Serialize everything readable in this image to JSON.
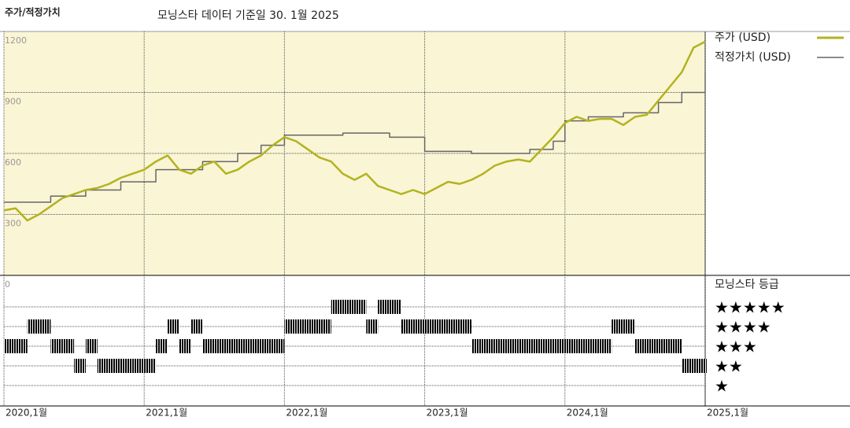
{
  "chart_data": {
    "type": "line",
    "corner_title": "주가/적정가치",
    "title": "모닝스타 데이터 기준일 30. 1월 2025",
    "x": [
      "2020-01",
      "2020-02",
      "2020-03",
      "2020-04",
      "2020-05",
      "2020-06",
      "2020-07",
      "2020-08",
      "2020-09",
      "2020-10",
      "2020-11",
      "2020-12",
      "2021-01",
      "2021-02",
      "2021-03",
      "2021-04",
      "2021-05",
      "2021-06",
      "2021-07",
      "2021-08",
      "2021-09",
      "2021-10",
      "2021-11",
      "2021-12",
      "2022-01",
      "2022-02",
      "2022-03",
      "2022-04",
      "2022-05",
      "2022-06",
      "2022-07",
      "2022-08",
      "2022-09",
      "2022-10",
      "2022-11",
      "2022-12",
      "2023-01",
      "2023-02",
      "2023-03",
      "2023-04",
      "2023-05",
      "2023-06",
      "2023-07",
      "2023-08",
      "2023-09",
      "2023-10",
      "2023-11",
      "2023-12",
      "2024-01",
      "2024-02",
      "2024-03",
      "2024-04",
      "2024-05",
      "2024-06",
      "2024-07",
      "2024-08",
      "2024-09",
      "2024-10",
      "2024-11",
      "2024-12",
      "2025-01"
    ],
    "series": [
      {
        "name": "주가 (USD)",
        "color": "#b3b320",
        "values": [
          320,
          330,
          270,
          300,
          340,
          380,
          400,
          420,
          430,
          450,
          480,
          500,
          520,
          560,
          590,
          520,
          500,
          540,
          560,
          500,
          520,
          560,
          590,
          640,
          680,
          660,
          620,
          580,
          560,
          500,
          470,
          500,
          440,
          420,
          400,
          420,
          400,
          430,
          460,
          450,
          470,
          500,
          540,
          560,
          570,
          560,
          620,
          680,
          750,
          780,
          760,
          770,
          770,
          740,
          780,
          790,
          860,
          930,
          1000,
          1120,
          1150
        ]
      },
      {
        "name": "적정가치 (USD)",
        "color": "#666666",
        "step": true,
        "values": [
          360,
          360,
          360,
          360,
          390,
          390,
          390,
          420,
          420,
          420,
          460,
          460,
          460,
          520,
          520,
          520,
          520,
          560,
          560,
          560,
          600,
          600,
          640,
          640,
          690,
          690,
          690,
          690,
          690,
          700,
          700,
          700,
          700,
          680,
          680,
          680,
          610,
          610,
          610,
          610,
          600,
          600,
          600,
          600,
          600,
          620,
          620,
          660,
          760,
          760,
          780,
          780,
          780,
          800,
          800,
          800,
          850,
          850,
          900,
          900,
          1000
        ]
      }
    ],
    "ratings": {
      "name": "모닝스타 등급",
      "color": "#111111",
      "top_color": "#3d8a6c",
      "labels": [
        "★★★★★",
        "★★★★",
        "★★★",
        "★★",
        "★"
      ],
      "values": [
        3,
        3,
        4,
        4,
        3,
        3,
        2,
        3,
        2,
        2,
        2,
        2,
        2,
        3,
        4,
        3,
        4,
        3,
        3,
        3,
        3,
        3,
        3,
        3,
        4,
        4,
        4,
        4,
        5,
        5,
        5,
        4,
        5,
        5,
        4,
        4,
        4,
        4,
        4,
        4,
        3,
        3,
        3,
        3,
        3,
        3,
        3,
        3,
        3,
        3,
        3,
        3,
        4,
        4,
        3,
        3,
        3,
        3,
        2,
        2,
        2
      ]
    },
    "xlim": [
      "2020-01",
      "2025-01"
    ],
    "xticks": [
      {
        "value": "2020-01",
        "label": "2020,1월"
      },
      {
        "value": "2021-01",
        "label": "2021,1월"
      },
      {
        "value": "2022-01",
        "label": "2022,1월"
      },
      {
        "value": "2023-01",
        "label": "2023,1월"
      },
      {
        "value": "2024-01",
        "label": "2024,1월"
      },
      {
        "value": "2025-01",
        "label": "2025,1월"
      }
    ],
    "ylim": [
      0,
      1200
    ],
    "yticks": [
      0,
      300,
      600,
      900,
      1200
    ],
    "grid": true
  }
}
